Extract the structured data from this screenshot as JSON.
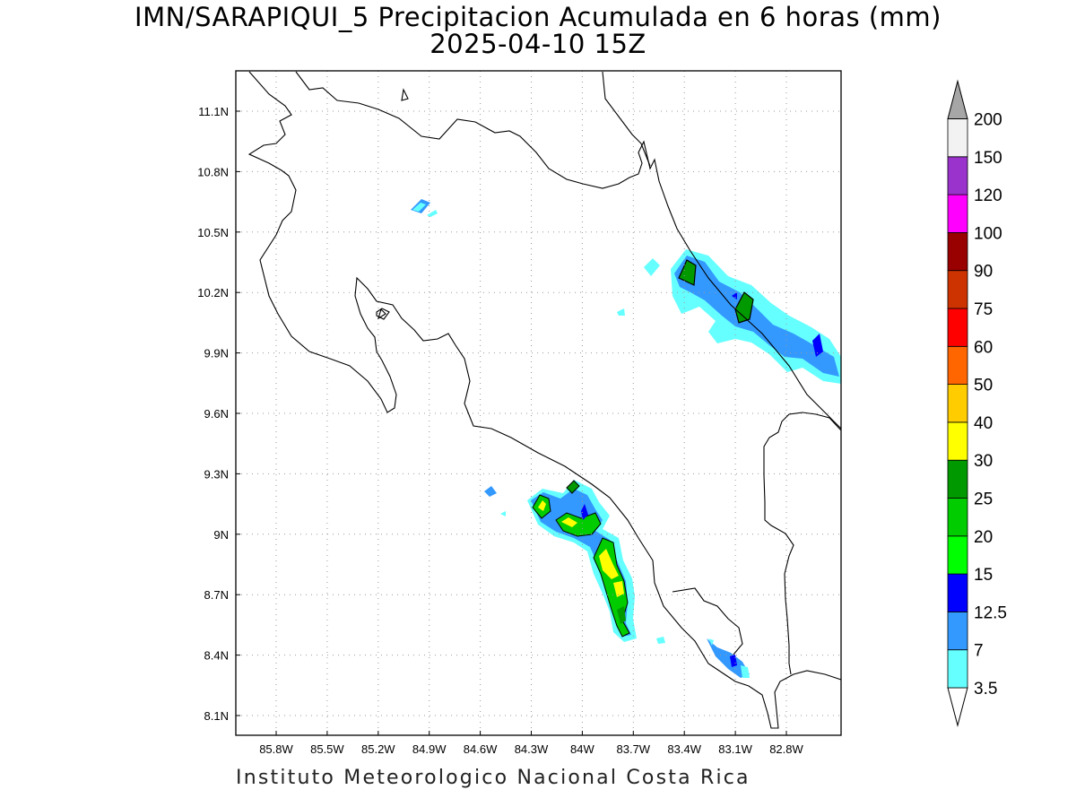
{
  "title": {
    "line1": "IMN/SARAPIQUI_5 Precipitacion Acumulada en 6 horas (mm)",
    "line2": "2025-04-10 15Z"
  },
  "footer": "Instituto Meteorologico Nacional Costa Rica",
  "map": {
    "lon_labels": [
      "85.8W",
      "85.5W",
      "85.2W",
      "84.9W",
      "84.6W",
      "84.3W",
      "84W",
      "83.7W",
      "83.4W",
      "83.1W",
      "82.8W"
    ],
    "lat_labels": [
      "11.1N",
      "10.8N",
      "10.5N",
      "10.2N",
      "9.9N",
      "9.6N",
      "9.3N",
      "9N",
      "8.7N",
      "8.4N",
      "8.1N"
    ],
    "grid": true,
    "frame_color": "#000000",
    "coast_color": "#000000"
  },
  "colorbar": {
    "levels": [
      "3.5",
      "7",
      "12.5",
      "15",
      "20",
      "25",
      "30",
      "40",
      "50",
      "60",
      "75",
      "90",
      "100",
      "120",
      "150",
      "200"
    ],
    "colors": [
      "#66ffff",
      "#3399ff",
      "#0000ff",
      "#00ff00",
      "#00cc00",
      "#009900",
      "#ffff00",
      "#ffcc00",
      "#ff6600",
      "#ff0000",
      "#cc3300",
      "#990000",
      "#ff00ff",
      "#9933cc",
      "#f2f2f2",
      "#a6a6a6"
    ]
  }
}
